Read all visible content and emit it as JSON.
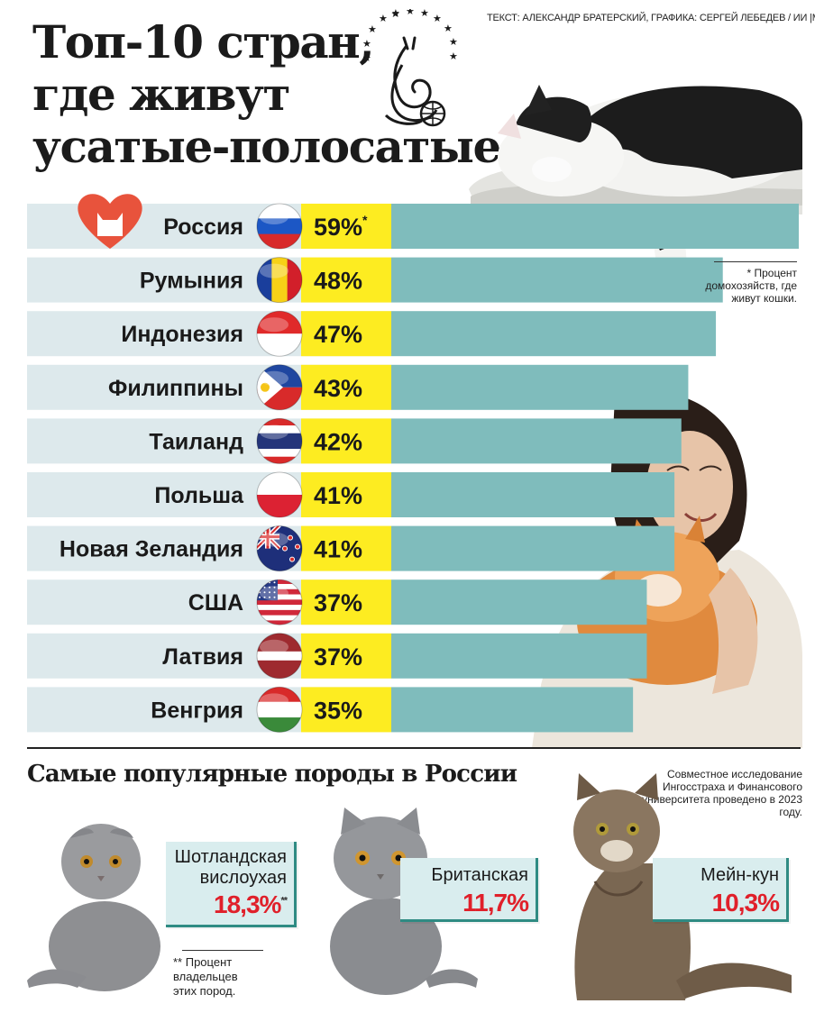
{
  "credit": "ТЕКСТ: АЛЕКСАНДР БРАТЕРСКИЙ, ГРАФИКА: СЕРГЕЙ ЛЕБЕДЕВ / ИИ  |METRO",
  "title_lines": [
    "Топ-10 стран,",
    "где живут",
    "усатые-полосатые"
  ],
  "colors": {
    "bar": "#7fbcbc",
    "bar_bg": "#dde9ec",
    "pct_bg": "#fdec21",
    "accent_red": "#e0202a",
    "card_border": "#2f8b83"
  },
  "chart_data": {
    "type": "bar",
    "categories": [
      "Россия",
      "Румыния",
      "Индонезия",
      "Филиппины",
      "Таиланд",
      "Польша",
      "Новая Зеландия",
      "США",
      "Латвия",
      "Венгрия"
    ],
    "values": [
      59,
      48,
      47,
      43,
      42,
      41,
      41,
      37,
      37,
      35
    ],
    "labels": [
      "59%",
      "48%",
      "47%",
      "43%",
      "42%",
      "41%",
      "41%",
      "37%",
      "37%",
      "35%"
    ],
    "first_label_marker": "*",
    "flag_icons": [
      "flag-russia-icon",
      "flag-romania-icon",
      "flag-indonesia-icon",
      "flag-philippines-icon",
      "flag-thailand-icon",
      "flag-poland-icon",
      "flag-new-zealand-icon",
      "flag-usa-icon",
      "flag-latvia-icon",
      "flag-hungary-icon"
    ]
  },
  "note_household": "* Процент домохозяйств, где живут кошки.",
  "breeds_title": "Самые популярные породы в России",
  "study_note": "Совместное исследование Ингосстраха и Финансового университета проведено в 2023 году.",
  "breeds": [
    {
      "name_lines": [
        "Шотландская",
        "вислоухая"
      ],
      "pct": "18,3%",
      "marker": "**"
    },
    {
      "name_lines": [
        "Британская"
      ],
      "pct": "11,7%",
      "marker": ""
    },
    {
      "name_lines": [
        "Мейн-кун"
      ],
      "pct": "10,3%",
      "marker": ""
    }
  ],
  "note_owners": "** Процент владельцев этих пород."
}
